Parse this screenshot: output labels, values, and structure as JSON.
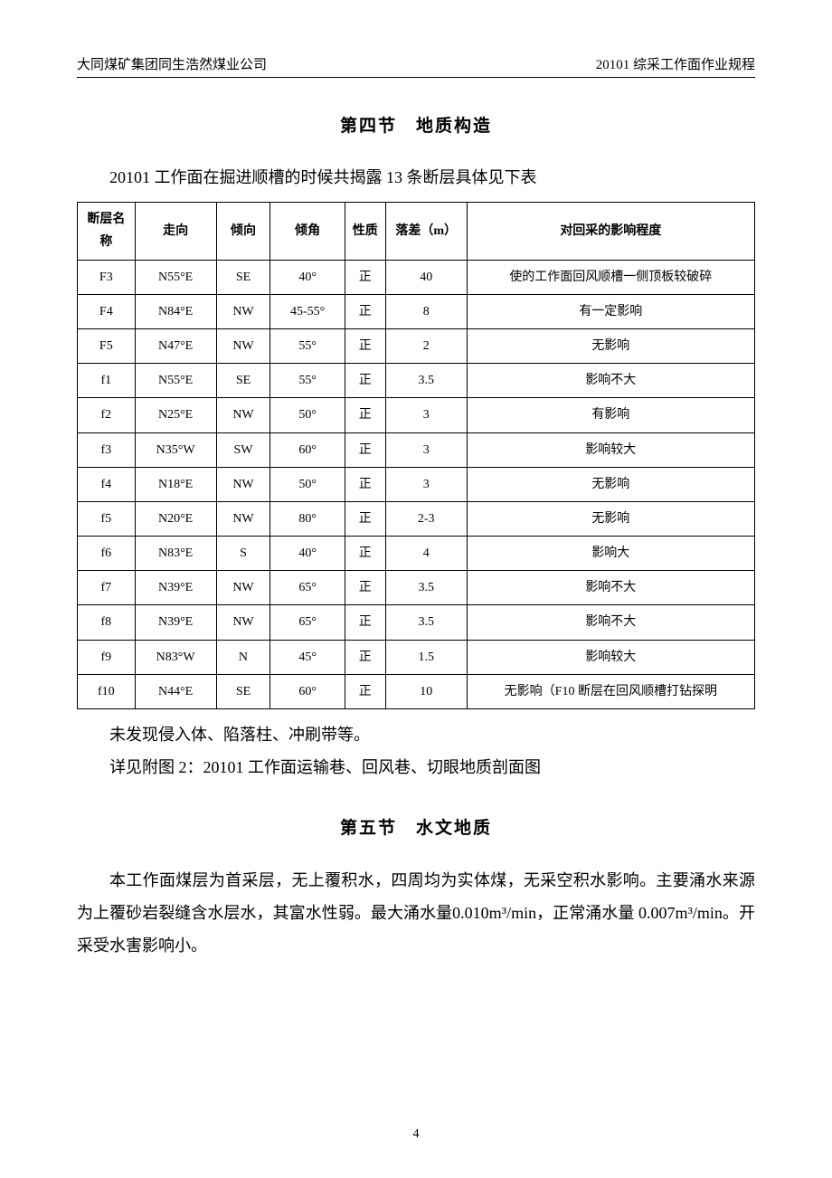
{
  "header": {
    "left": "大同煤矿集团同生浩然煤业公司",
    "right": "20101 综采工作面作业规程"
  },
  "section4": {
    "title": "第四节　地质构造",
    "intro": "20101 工作面在掘进顺槽的时候共揭露 13 条断层具体见下表",
    "columns": [
      "断层名称",
      "走向",
      "倾向",
      "倾角",
      "性质",
      "落差（m）",
      "对回采的影响程度"
    ],
    "rows": [
      [
        "F3",
        "N55°E",
        "SE",
        "40°",
        "正",
        "40",
        "使的工作面回风顺槽一侧顶板较破碎"
      ],
      [
        "F4",
        "N84°E",
        "NW",
        "45-55°",
        "正",
        "8",
        "有一定影响"
      ],
      [
        "F5",
        "N47°E",
        "NW",
        "55°",
        "正",
        "2",
        "无影响"
      ],
      [
        "f1",
        "N55°E",
        "SE",
        "55°",
        "正",
        "3.5",
        "影响不大"
      ],
      [
        "f2",
        "N25°E",
        "NW",
        "50°",
        "正",
        "3",
        "有影响"
      ],
      [
        "f3",
        "N35°W",
        "SW",
        "60°",
        "正",
        "3",
        "影响较大"
      ],
      [
        "f4",
        "N18°E",
        "NW",
        "50°",
        "正",
        "3",
        "无影响"
      ],
      [
        "f5",
        "N20°E",
        "NW",
        "80°",
        "正",
        "2-3",
        "无影响"
      ],
      [
        "f6",
        "N83°E",
        "S",
        "40°",
        "正",
        "4",
        "影响大"
      ],
      [
        "f7",
        "N39°E",
        "NW",
        "65°",
        "正",
        "3.5",
        "影响不大"
      ],
      [
        "f8",
        "N39°E",
        "NW",
        "65°",
        "正",
        "3.5",
        "影响不大"
      ],
      [
        "f9",
        "N83°W",
        "N",
        "45°",
        "正",
        "1.5",
        "影响较大"
      ],
      [
        "f10",
        "N44°E",
        "SE",
        "60°",
        "正",
        "10",
        "无影响（F10 断层在回风顺槽打钻探明"
      ]
    ],
    "after1": "未发现侵入体、陷落柱、冲刷带等。",
    "after2": "详见附图 2：20101 工作面运输巷、回风巷、切眼地质剖面图"
  },
  "section5": {
    "title": "第五节　水文地质",
    "body": "本工作面煤层为首采层，无上覆积水，四周均为实体煤，无采空积水影响。主要涌水来源为上覆砂岩裂缝含水层水，其富水性弱。最大涌水量0.010m³/min，正常涌水量 0.007m³/min。开采受水害影响小。"
  },
  "page_number": "4"
}
